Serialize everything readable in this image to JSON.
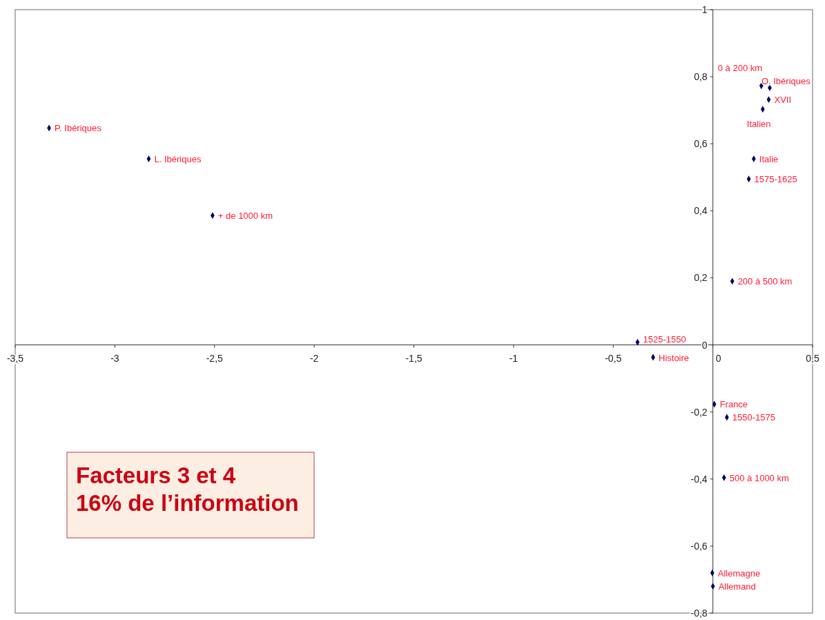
{
  "chart_data": {
    "type": "scatter",
    "marker": "diamond",
    "grid": false,
    "series": [
      {
        "color": "#000066",
        "x": [
          -3.33,
          -2.83,
          -2.51,
          0.243,
          0.285,
          0.28,
          0.25,
          0.205,
          0.18,
          0.097,
          -0.378,
          -0.3,
          0.007,
          0.07,
          0.056,
          -0.003,
          0.0
        ],
        "values": [
          0.647,
          0.555,
          0.386,
          0.773,
          0.767,
          0.732,
          0.703,
          0.555,
          0.495,
          0.19,
          0.008,
          -0.037,
          -0.177,
          -0.216,
          -0.396,
          -0.68,
          -0.72
        ]
      }
    ],
    "annotations": [
      {
        "text": "P. Ibériques",
        "x": -3.33,
        "y": 0.647
      },
      {
        "text": "L. Ibériques",
        "x": -2.83,
        "y": 0.555
      },
      {
        "text": "+ de 1000 km",
        "x": -2.51,
        "y": 0.386
      },
      {
        "text": "0 à 200 km",
        "x": 0.243,
        "y": 0.773
      },
      {
        "text": "O. Ibériques",
        "x": 0.285,
        "y": 0.767
      },
      {
        "text": "XVII",
        "x": 0.28,
        "y": 0.732
      },
      {
        "text": "Italien",
        "x": 0.25,
        "y": 0.703
      },
      {
        "text": "Italie",
        "x": 0.205,
        "y": 0.555
      },
      {
        "text": "1575-1625",
        "x": 0.18,
        "y": 0.495
      },
      {
        "text": "200 à 500 km",
        "x": 0.097,
        "y": 0.19
      },
      {
        "text": "1525-1550",
        "x": -0.378,
        "y": 0.008
      },
      {
        "text": "Histoire",
        "x": -0.3,
        "y": -0.037
      },
      {
        "text": "France",
        "x": 0.007,
        "y": -0.177
      },
      {
        "text": "1550-1575",
        "x": 0.07,
        "y": -0.216
      },
      {
        "text": "500 à 1000 km",
        "x": 0.056,
        "y": -0.396
      },
      {
        "text": "Allemagne",
        "x": -0.003,
        "y": -0.68
      },
      {
        "text": "Allemand",
        "x": 0.0,
        "y": -0.72
      },
      "Facteurs 3 et 4",
      "16% de l’information"
    ],
    "xlim": [
      -3.5,
      0.5
    ],
    "ylim": [
      -0.8,
      1
    ],
    "xticks": [
      {
        "value": -3.5,
        "label": "-3,5"
      },
      -3,
      {
        "value": -2.5,
        "label": "-2,5"
      },
      -2,
      {
        "value": -1.5,
        "label": "-1,5"
      },
      -1,
      {
        "value": -0.5,
        "label": "-0,5"
      },
      0,
      {
        "value": 0.5,
        "label": "0,5"
      }
    ],
    "yticks": [
      {
        "value": -0.8,
        "label": "-0,8"
      },
      {
        "value": -0.6,
        "label": "-0,6"
      },
      {
        "value": -0.4,
        "label": "-0,4"
      },
      {
        "value": -0.2,
        "label": "-0,2"
      },
      0,
      {
        "value": 0.2,
        "label": "0,2"
      },
      {
        "value": 0.4,
        "label": "0,4"
      },
      {
        "value": 0.6,
        "label": "0,6"
      },
      {
        "value": 0.8,
        "label": "0,8"
      },
      1
    ]
  }
}
